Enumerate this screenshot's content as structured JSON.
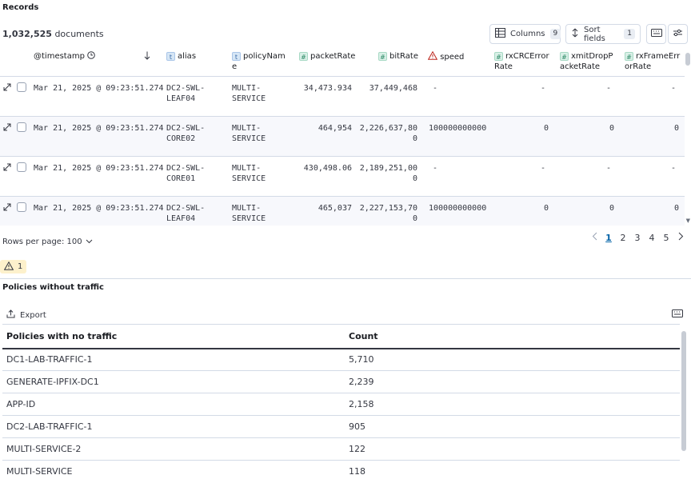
{
  "records": {
    "title": "Records",
    "doc_count_num": "1,032,525",
    "doc_count_label": "documents",
    "columns_label": "Columns",
    "columns_count": "9",
    "sort_label": "Sort fields",
    "sort_count": "1"
  },
  "columns": {
    "timestamp": "@timestamp",
    "alias": "alias",
    "policyName_1": "policyNam",
    "policyName_2": "e",
    "packetRate": "packetRate",
    "bitRate": "bitRate",
    "speed": "speed",
    "rxCRC_1": "rxCRCError",
    "rxCRC_2": "Rate",
    "xmit_1": "xmitDropP",
    "xmit_2": "acketRate",
    "rxFrame_1": "rxFrameErr",
    "rxFrame_2": "orRate"
  },
  "rows": [
    {
      "ts": "Mar 21, 2025 @ 09:23:51.274",
      "alias1": "DC2-SWL-",
      "alias2": "LEAF04",
      "pol1": "MULTI-",
      "pol2": "SERVICE",
      "packet": "34,473.934",
      "bit1": "37,449,468",
      "bit2": "",
      "speed": "-",
      "rxcrc": "-",
      "xmit": "-",
      "rxframe": "-"
    },
    {
      "ts": "Mar 21, 2025 @ 09:23:51.274",
      "alias1": "DC2-SWL-",
      "alias2": "CORE02",
      "pol1": "MULTI-",
      "pol2": "SERVICE",
      "packet": "464,954",
      "bit1": "2,226,637,80",
      "bit2": "0",
      "speed": "100000000000",
      "rxcrc": "0",
      "xmit": "0",
      "rxframe": "0"
    },
    {
      "ts": "Mar 21, 2025 @ 09:23:51.274",
      "alias1": "DC2-SWL-",
      "alias2": "CORE01",
      "pol1": "MULTI-",
      "pol2": "SERVICE",
      "packet": "430,498.06",
      "bit1": "2,189,251,00",
      "bit2": "0",
      "speed": "-",
      "rxcrc": "-",
      "xmit": "-",
      "rxframe": "-"
    },
    {
      "ts": "Mar 21, 2025 @ 09:23:51.274",
      "alias1": "DC2-SWL-",
      "alias2": "LEAF04",
      "pol1": "MULTI-",
      "pol2": "SERVICE",
      "packet": "465,037",
      "bit1": "2,227,153,70",
      "bit2": "0",
      "speed": "100000000000",
      "rxcrc": "0",
      "xmit": "0",
      "rxframe": "0"
    }
  ],
  "pagination": {
    "rows_per_page": "Rows per page: 100",
    "pages": [
      "1",
      "2",
      "3",
      "4",
      "5"
    ],
    "active": "1"
  },
  "warning_count": "1",
  "policies": {
    "title": "Policies without traffic",
    "export_label": "Export",
    "col1": "Policies with no traffic",
    "col2": "Count",
    "items": [
      {
        "name": "DC1-LAB-TRAFFIC-1",
        "count": "5,710"
      },
      {
        "name": "GENERATE-IPFIX-DC1",
        "count": "2,239"
      },
      {
        "name": "APP-ID",
        "count": "2,158"
      },
      {
        "name": "DC2-LAB-TRAFFIC-1",
        "count": "905"
      },
      {
        "name": "MULTI-SERVICE-2",
        "count": "122"
      },
      {
        "name": "MULTI-SERVICE",
        "count": "118"
      }
    ]
  }
}
